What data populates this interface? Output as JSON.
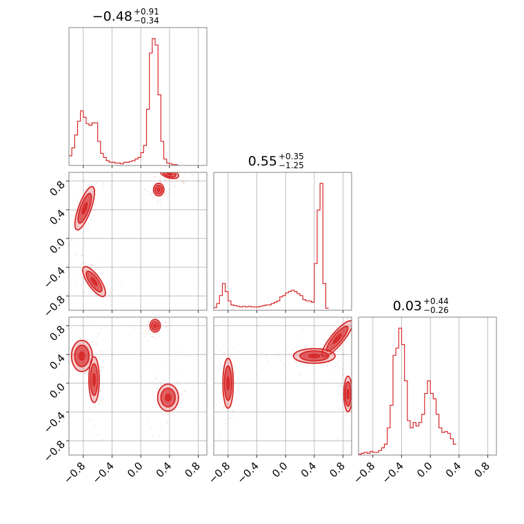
{
  "chart_data": {
    "type": "corner",
    "color": "#d62728",
    "grid": true,
    "axis_range": [
      -1.0,
      0.92
    ],
    "parameters": [
      {
        "title": {
          "median": "−0.48",
          "plus": "+0.91",
          "minus": "−0.34"
        }
      },
      {
        "title": {
          "median": "0.55",
          "plus": "+0.35",
          "minus": "−1.25"
        }
      },
      {
        "title": {
          "median": "0.03",
          "plus": "+0.44",
          "minus": "−0.26"
        }
      }
    ],
    "ticks": [
      -0.8,
      -0.4,
      0.0,
      0.4,
      0.8
    ],
    "tick_labels": [
      "−0.8",
      "−0.4",
      "0.0",
      "0.4",
      "0.8"
    ],
    "histograms": [
      {
        "parameter": 1,
        "bin_edges_start": -1.0,
        "bin_width": 0.04,
        "counts": [
          12,
          22,
          38,
          55,
          68,
          60,
          52,
          50,
          53,
          53,
          30,
          15,
          10,
          6,
          4,
          4,
          3,
          3,
          2,
          4,
          4,
          5,
          6,
          8,
          10,
          16,
          25,
          70,
          140,
          158,
          150,
          88,
          30,
          8,
          3,
          2,
          1,
          1
        ]
      },
      {
        "parameter": 2,
        "bin_edges_start": -1.0,
        "bin_width": 0.04,
        "counts": [
          4,
          10,
          22,
          40,
          28,
          14,
          8,
          7,
          6,
          5,
          6,
          5,
          6,
          5,
          5,
          5,
          6,
          7,
          8,
          8,
          10,
          12,
          14,
          20,
          22,
          26,
          28,
          30,
          28,
          25,
          22,
          16,
          14,
          14,
          12,
          70,
          150,
          190,
          40,
          3
        ]
      },
      {
        "parameter": 3,
        "bin_edges_start": -1.0,
        "bin_width": 0.04,
        "counts": [
          1,
          2,
          3,
          2,
          4,
          3,
          3,
          5,
          8,
          12,
          30,
          55,
          110,
          118,
          140,
          122,
          82,
          38,
          30,
          36,
          32,
          36,
          45,
          68,
          82,
          68,
          62,
          45,
          30,
          25,
          26,
          24,
          18,
          12
        ]
      }
    ],
    "pair_panels": [
      {
        "x": 1,
        "y": 2,
        "modes": [
          {
            "x": 0.4,
            "y": 0.9,
            "sx": 0.09,
            "sy": 0.04,
            "rot": -15
          },
          {
            "x": -0.78,
            "y": 0.42,
            "sx": 0.06,
            "sy": 0.22,
            "rot": -20
          },
          {
            "x": -0.65,
            "y": -0.6,
            "sx": 0.06,
            "sy": 0.17,
            "rot": 35
          },
          {
            "x": 0.25,
            "y": 0.68,
            "sx": 0.05,
            "sy": 0.06,
            "rot": 0
          }
        ]
      },
      {
        "x": 1,
        "y": 3,
        "modes": [
          {
            "x": 0.38,
            "y": -0.2,
            "sx": 0.1,
            "sy": 0.13,
            "rot": 0
          },
          {
            "x": -0.82,
            "y": 0.38,
            "sx": 0.1,
            "sy": 0.15,
            "rot": 0
          },
          {
            "x": -0.65,
            "y": 0.05,
            "sx": 0.05,
            "sy": 0.22,
            "rot": 0
          },
          {
            "x": 0.2,
            "y": 0.8,
            "sx": 0.05,
            "sy": 0.06,
            "rot": 0
          }
        ]
      },
      {
        "x": 2,
        "y": 3,
        "modes": [
          {
            "x": 0.4,
            "y": 0.38,
            "sx": 0.2,
            "sy": 0.07,
            "rot": 0
          },
          {
            "x": -0.8,
            "y": 0.0,
            "sx": 0.05,
            "sy": 0.24,
            "rot": 0
          },
          {
            "x": 0.72,
            "y": 0.62,
            "sx": 0.06,
            "sy": 0.22,
            "rot": -40
          },
          {
            "x": 0.87,
            "y": -0.15,
            "sx": 0.04,
            "sy": 0.17,
            "rot": 0
          }
        ]
      }
    ]
  }
}
